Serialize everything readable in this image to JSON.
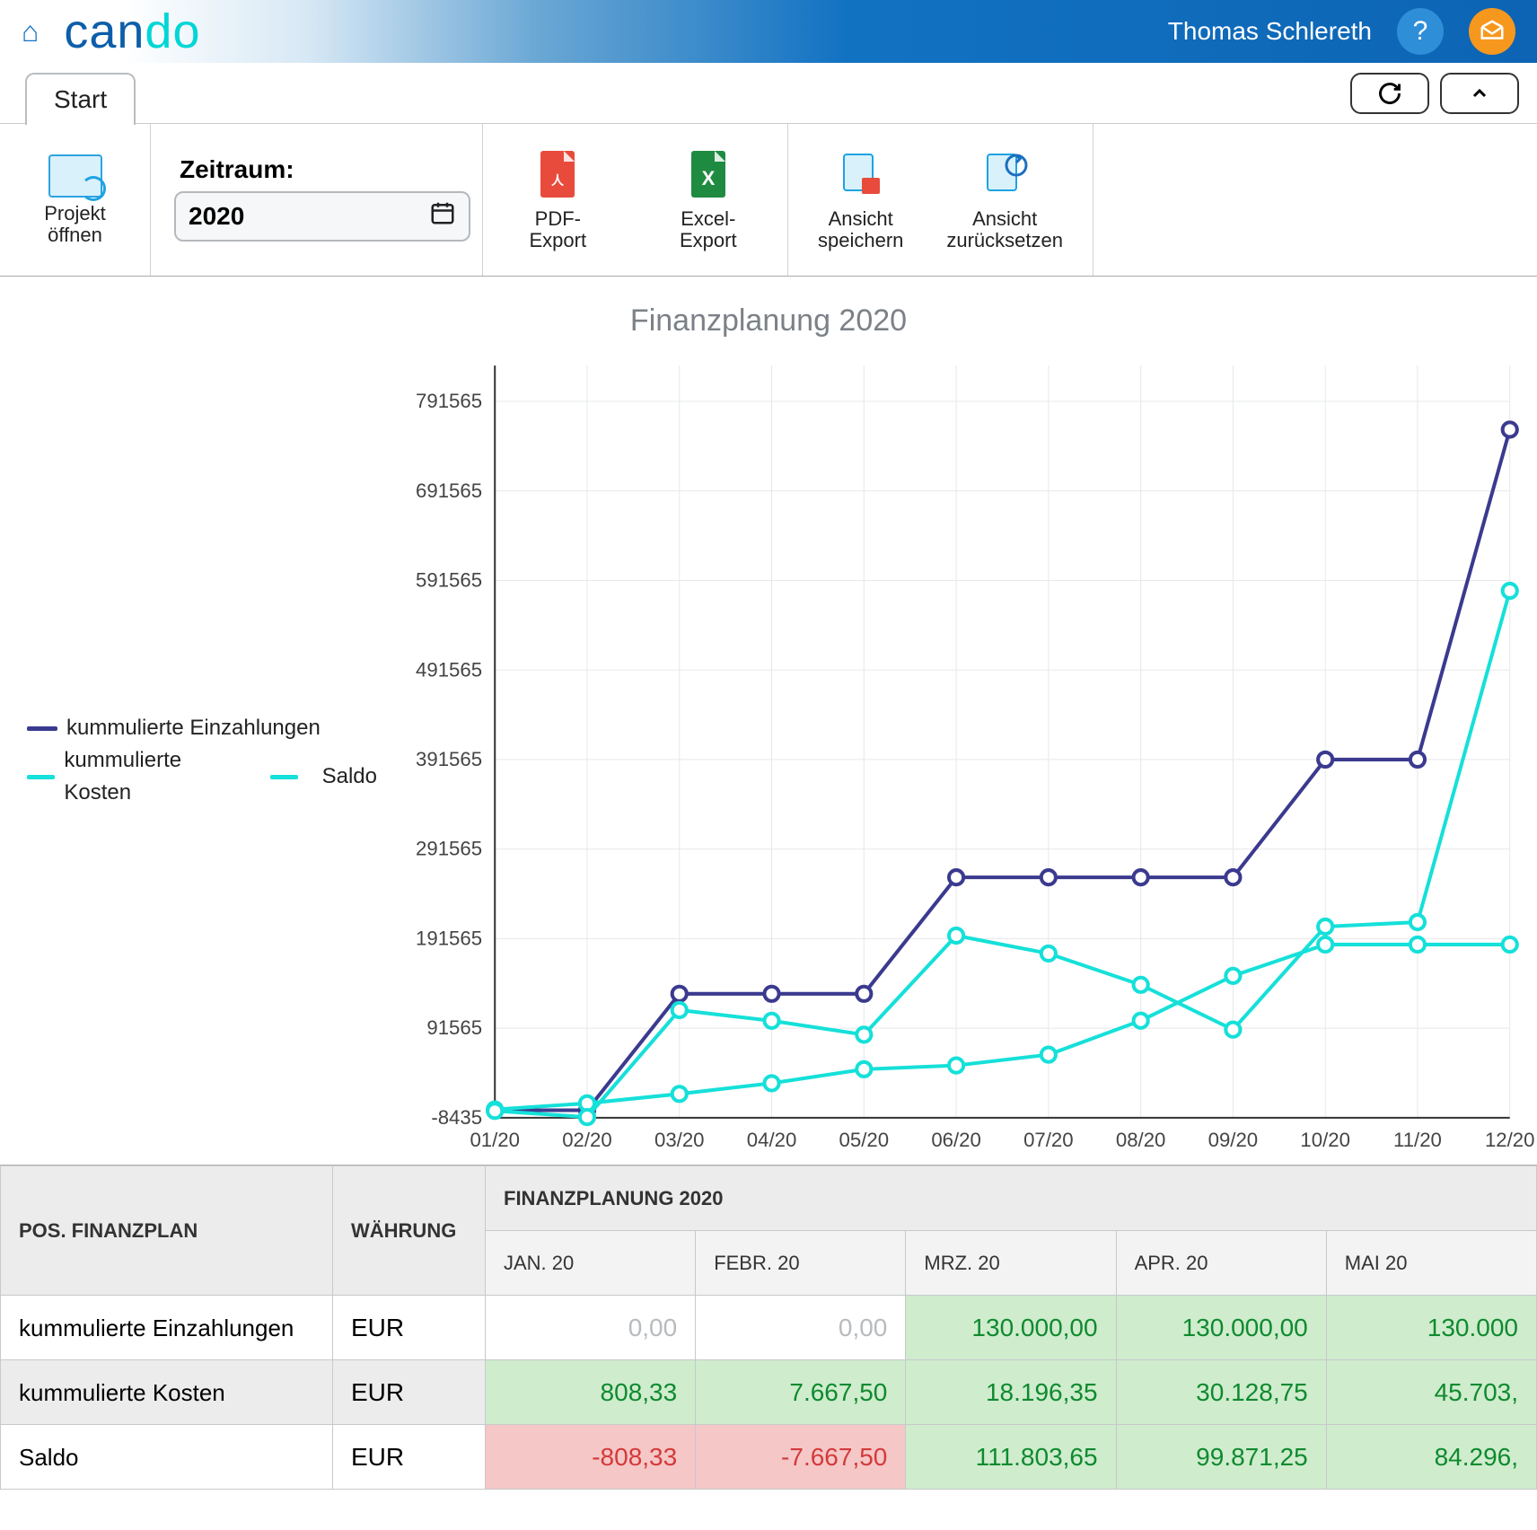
{
  "header": {
    "user": "Thomas Schlereth",
    "logo_a": "can",
    "logo_b": "do"
  },
  "tabs": {
    "start": "Start"
  },
  "toolbar": {
    "projekt_oeffnen": "Projekt\nöffnen",
    "zeitraum_label": "Zeitraum:",
    "zeitraum_value": "2020",
    "pdf_export": "PDF-Export",
    "excel_export": "Excel-Export",
    "ansicht_speichern": "Ansicht\nspeichern",
    "ansicht_zuruecksetzen": "Ansicht\nzurücksetzen"
  },
  "chart": {
    "title": "Finanzplanung 2020",
    "type": "line",
    "x_labels": [
      "01/20",
      "02/20",
      "03/20",
      "04/20",
      "05/20",
      "06/20",
      "07/20",
      "08/20",
      "09/20",
      "10/20",
      "11/20",
      "12/20"
    ],
    "y_ticks": [
      -8435,
      91565,
      191565,
      291565,
      391565,
      491565,
      591565,
      691565,
      791565
    ],
    "y_min": -8435,
    "y_max": 831565,
    "grid_color": "#e7e8ea",
    "axis_color": "#333333",
    "background": "#ffffff",
    "label_fontsize": 22,
    "line_width": 4,
    "marker_radius": 8,
    "marker_stroke": 4,
    "series": [
      {
        "name": "kummulierte Einzahlungen",
        "color": "#3b3a8f",
        "values": [
          0,
          0,
          130000,
          130000,
          130000,
          260000,
          260000,
          260000,
          260000,
          391565,
          391565,
          760000
        ]
      },
      {
        "name": "kummulierte Kosten",
        "color": "#15e0d9",
        "values": [
          808,
          7668,
          18196,
          30129,
          45703,
          50000,
          62000,
          100000,
          150000,
          185000,
          185000,
          185000
        ]
      },
      {
        "name": "Saldo",
        "color": "#15e0d9",
        "values": [
          -808,
          -7668,
          111804,
          99871,
          84296,
          195000,
          175000,
          140000,
          90000,
          205000,
          210000,
          580000
        ]
      }
    ],
    "legend_labels": [
      "kummulierte Einzahlungen",
      "kummulierte Kosten",
      "Saldo"
    ],
    "legend_colors": [
      "#3b3a8f",
      "#15e0d9",
      "#15e0d9"
    ]
  },
  "table": {
    "h_pos": "POS. FINANZPLAN",
    "h_cur": "WÄHRUNG",
    "h_main": "FINANZPLANUNG 2020",
    "months": [
      "JAN. 20",
      "FEBR. 20",
      "MRZ. 20",
      "APR. 20",
      "MAI 20"
    ],
    "rows": [
      {
        "label": "kummulierte Einzahlungen",
        "cur": "EUR",
        "cells": [
          {
            "v": "0,00",
            "style": "gray"
          },
          {
            "v": "0,00",
            "style": "gray"
          },
          {
            "v": "130.000,00",
            "style": "green-bg"
          },
          {
            "v": "130.000,00",
            "style": "green-bg"
          },
          {
            "v": "130.000",
            "style": "green-bg"
          }
        ],
        "odd": false
      },
      {
        "label": "kummulierte Kosten",
        "cur": "EUR",
        "cells": [
          {
            "v": "808,33",
            "style": "green-bg"
          },
          {
            "v": "7.667,50",
            "style": "green-bg"
          },
          {
            "v": "18.196,35",
            "style": "green-bg"
          },
          {
            "v": "30.128,75",
            "style": "green-bg"
          },
          {
            "v": "45.703,",
            "style": "green-bg"
          }
        ],
        "odd": true
      },
      {
        "label": "Saldo",
        "cur": "EUR",
        "cells": [
          {
            "v": "-808,33",
            "style": "red-bg"
          },
          {
            "v": "-7.667,50",
            "style": "red-bg"
          },
          {
            "v": "111.803,65",
            "style": "green-bg"
          },
          {
            "v": "99.871,25",
            "style": "green-bg"
          },
          {
            "v": "84.296,",
            "style": "green-bg"
          }
        ],
        "odd": false
      }
    ]
  }
}
